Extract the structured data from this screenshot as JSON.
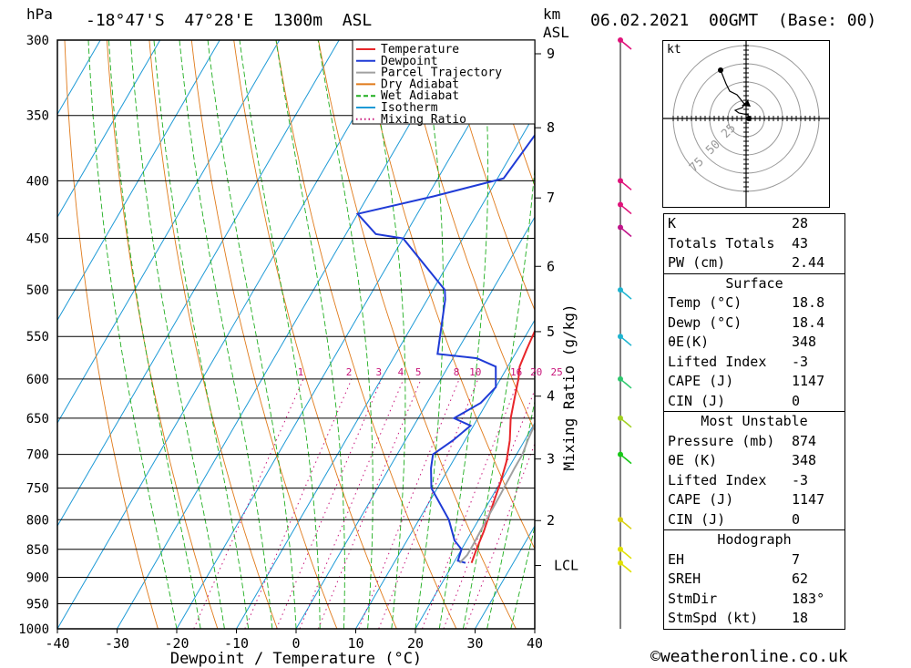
{
  "header": {
    "unit_left": "hPa",
    "location": "-18°47'S  47°28'E  1300m  ASL",
    "unit_km": "km",
    "unit_asl": "ASL",
    "datetime": "06.02.2021  00GMT  (Base: 00)"
  },
  "footer": {
    "copyright": "©weatheronline.co.uk"
  },
  "hodograph": {
    "unit": "kt",
    "ring_labels": [
      "25",
      "50",
      "75"
    ]
  },
  "tables": {
    "indices": [
      {
        "label": "K",
        "value": "28"
      },
      {
        "label": "Totals Totals",
        "value": "43"
      },
      {
        "label": "PW (cm)",
        "value": "2.44"
      }
    ],
    "surface_title": "Surface",
    "surface": [
      {
        "label": "Temp (°C)",
        "value": "18.8"
      },
      {
        "label": "Dewp (°C)",
        "value": "18.4"
      },
      {
        "label": "θE(K)",
        "value": "348"
      },
      {
        "label": "Lifted Index",
        "value": "-3"
      },
      {
        "label": "CAPE (J)",
        "value": "1147"
      },
      {
        "label": "CIN (J)",
        "value": "0"
      }
    ],
    "mu_title": "Most Unstable",
    "most_unstable": [
      {
        "label": "Pressure (mb)",
        "value": "874"
      },
      {
        "label": "θE (K)",
        "value": "348"
      },
      {
        "label": "Lifted Index",
        "value": "-3"
      },
      {
        "label": "CAPE (J)",
        "value": "1147"
      },
      {
        "label": "CIN (J)",
        "value": "0"
      }
    ],
    "hodo_title": "Hodograph",
    "hodo": [
      {
        "label": "EH",
        "value": "7"
      },
      {
        "label": "SREH",
        "value": "62"
      },
      {
        "label": "StmDir",
        "value": "183°"
      },
      {
        "label": "StmSpd (kt)",
        "value": "18"
      }
    ]
  },
  "chart_data": {
    "type": "line",
    "xlabel": "Dewpoint / Temperature (°C)",
    "ylabel": "hPa",
    "mixing_ratio_label": "Mixing Ratio (g/kg)",
    "xlim": [
      -40,
      40
    ],
    "ylim": [
      1000,
      300
    ],
    "x_ticks": [
      -40,
      -30,
      -20,
      -10,
      0,
      10,
      20,
      30,
      40
    ],
    "pressure_levels": [
      300,
      350,
      400,
      450,
      500,
      550,
      600,
      650,
      700,
      750,
      800,
      850,
      900,
      950,
      1000
    ],
    "km_ticks": [
      {
        "km": "9",
        "p": 308.5
      },
      {
        "km": "8",
        "p": 358.9
      },
      {
        "km": "7",
        "p": 414.3
      },
      {
        "km": "6",
        "p": 476.5
      },
      {
        "km": "5",
        "p": 544.6
      },
      {
        "km": "4",
        "p": 621.4
      },
      {
        "km": "3",
        "p": 706.6
      },
      {
        "km": "2",
        "p": 801.4
      },
      {
        "km": "LCL",
        "p": 878.6
      }
    ],
    "mixing_ratio_values": [
      "1",
      "2",
      "3",
      "4",
      "5",
      "8",
      "10",
      "16",
      "20",
      "25"
    ],
    "legend": [
      "Temperature",
      "Dewpoint",
      "Parcel Trajectory",
      "Dry Adiabat",
      "Wet Adiabat",
      "Isotherm",
      "Mixing Ratio"
    ],
    "colors": {
      "temperature": "#e8262a",
      "dewpoint": "#1f3bd6",
      "parcel": "#a0a0a0",
      "dry_adiabat": "#e07a1a",
      "wet_adiabat": "#1fae1f",
      "isotherm": "#1e9ad6",
      "mixing_ratio": "#c8147a"
    },
    "series": [
      {
        "name": "Temperature",
        "points": [
          [
            23.0,
            874
          ],
          [
            22.5,
            850
          ],
          [
            22.0,
            820
          ],
          [
            21.0,
            780
          ],
          [
            20.0,
            740
          ],
          [
            19.0,
            710
          ],
          [
            17.5,
            680
          ],
          [
            15.5,
            650
          ],
          [
            14.0,
            620
          ],
          [
            13.0,
            600
          ],
          [
            12.0,
            585
          ],
          [
            11.5,
            565
          ],
          [
            11.0,
            540
          ],
          [
            10.5,
            515
          ],
          [
            10.0,
            495
          ],
          [
            8.0,
            470
          ],
          [
            6.0,
            450
          ],
          [
            5.5,
            445
          ],
          [
            5.0,
            430
          ],
          [
            3.0,
            400
          ],
          [
            0.5,
            380
          ],
          [
            -2.0,
            360
          ],
          [
            -4.5,
            350
          ],
          [
            -6.0,
            330
          ],
          [
            -9.0,
            310
          ],
          [
            -10.5,
            300
          ]
        ]
      },
      {
        "name": "Dewpoint",
        "points": [
          [
            22.0,
            874
          ],
          [
            20.5,
            870
          ],
          [
            20.0,
            850
          ],
          [
            18.0,
            835
          ],
          [
            15.0,
            800
          ],
          [
            9.0,
            750
          ],
          [
            7.0,
            720
          ],
          [
            6.0,
            700
          ],
          [
            8.0,
            680
          ],
          [
            9.5,
            660
          ],
          [
            6.0,
            650
          ],
          [
            9.0,
            630
          ],
          [
            10.0,
            610
          ],
          [
            8.0,
            585
          ],
          [
            4.0,
            575
          ],
          [
            -3.0,
            570
          ],
          [
            -7.0,
            510
          ],
          [
            -8.0,
            500
          ],
          [
            -20.0,
            450
          ],
          [
            -25.0,
            446
          ],
          [
            -30.0,
            428
          ],
          [
            -19.0,
            413
          ],
          [
            -9.0,
            398
          ],
          [
            -8.0,
            366
          ],
          [
            -7.0,
            340
          ],
          [
            -6.5,
            315
          ],
          [
            -10.0,
            304
          ],
          [
            -11.0,
            300
          ]
        ]
      },
      {
        "name": "Parcel Trajectory",
        "points": [
          [
            21.0,
            874
          ],
          [
            21.5,
            860
          ],
          [
            21.5,
            840
          ],
          [
            21.3,
            800
          ],
          [
            21.2,
            760
          ],
          [
            21.0,
            720
          ],
          [
            21.0,
            700
          ],
          [
            20.5,
            680
          ],
          [
            20.0,
            650
          ],
          [
            19.5,
            620
          ],
          [
            19.0,
            600
          ],
          [
            18.0,
            570
          ],
          [
            17.0,
            540
          ],
          [
            16.0,
            510
          ],
          [
            15.0,
            480
          ],
          [
            14.0,
            450
          ],
          [
            12.5,
            420
          ],
          [
            10.0,
            390
          ],
          [
            7.5,
            360
          ]
        ]
      }
    ],
    "wind_barbs_p": [
      300,
      400,
      420,
      440,
      500,
      550,
      600,
      650,
      700,
      800,
      850,
      874
    ]
  }
}
